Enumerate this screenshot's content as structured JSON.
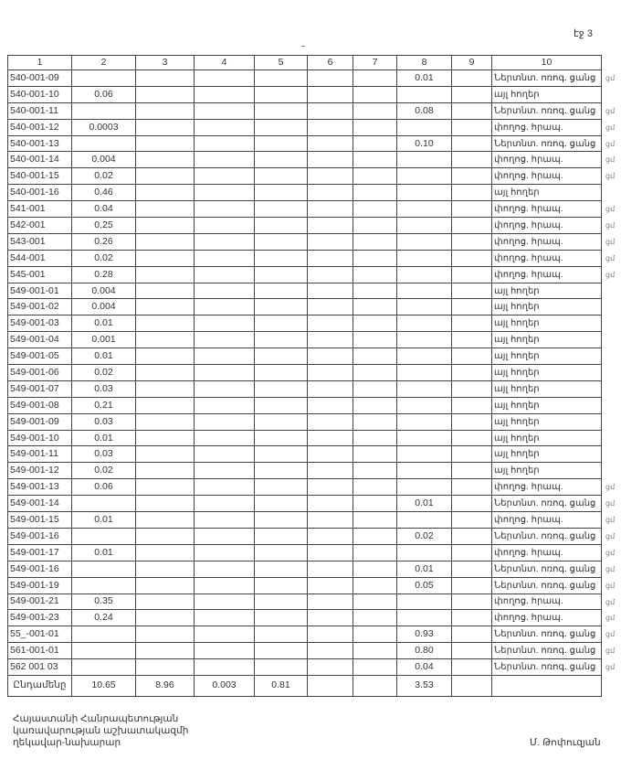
{
  "page_label": "էջ 3",
  "table": {
    "headers": [
      "1",
      "2",
      "3",
      "4",
      "5",
      "6",
      "7",
      "8",
      "9",
      "10"
    ],
    "rows": [
      {
        "code": "540-001-09",
        "c2": "",
        "c8": "0.01",
        "c10": "Ներտնտ. ոռոգ. ցանց",
        "mark": "ցմ"
      },
      {
        "code": "540-001-10",
        "c2": "0.06",
        "c8": "",
        "c10": "այլ հողեր",
        "mark": ""
      },
      {
        "code": "540-001-11",
        "c2": "",
        "c8": "0.08",
        "c10": "Ներտնտ. ոռոգ. ցանց",
        "mark": "ցմ"
      },
      {
        "code": "540-001-12",
        "c2": "0.0003",
        "c8": "",
        "c10": "փողոց. հրապ.",
        "mark": "ցմ"
      },
      {
        "code": "540-001-13",
        "c2": "",
        "c8": "0.10",
        "c10": "Ներտնտ. ոռոգ. ցանց",
        "mark": "ցմ"
      },
      {
        "code": "540-001-14",
        "c2": "0.004",
        "c8": "",
        "c10": "փողոց. հրապ.",
        "mark": "ցմ"
      },
      {
        "code": "540-001-15",
        "c2": "0.02",
        "c8": "",
        "c10": "փողոց. հրապ.",
        "mark": "ցմ"
      },
      {
        "code": "540-001-16",
        "c2": "0.46",
        "c8": "",
        "c10": "այլ հողեր",
        "mark": ""
      },
      {
        "code": "541-001",
        "c2": "0.04",
        "c8": "",
        "c10": "փողոց. հրապ.",
        "mark": "ցմ"
      },
      {
        "code": "542-001",
        "c2": "0.25",
        "c8": "",
        "c10": "փողոց. հրապ.",
        "mark": "ցմ"
      },
      {
        "code": "543-001",
        "c2": "0.26",
        "c8": "",
        "c10": "փողոց. հրապ.",
        "mark": "ցմ"
      },
      {
        "code": "544-001",
        "c2": "0.02",
        "c8": "",
        "c10": "փողոց. հրապ.",
        "mark": "ցմ"
      },
      {
        "code": "545-001",
        "c2": "0.28",
        "c8": "",
        "c10": "փողոց. հրապ.",
        "mark": "ցմ"
      },
      {
        "code": "549-001-01",
        "c2": "0.004",
        "c8": "",
        "c10": "այլ հողեր",
        "mark": ""
      },
      {
        "code": "549-001-02",
        "c2": "0.004",
        "c8": "",
        "c10": "այլ հողեր",
        "mark": ""
      },
      {
        "code": "549-001-03",
        "c2": "0.01",
        "c8": "",
        "c10": "այլ հողեր",
        "mark": ""
      },
      {
        "code": "549-001-04",
        "c2": "0.001",
        "c8": "",
        "c10": "այլ հողեր",
        "mark": ""
      },
      {
        "code": "549-001-05",
        "c2": "0.01",
        "c8": "",
        "c10": "այլ հողեր",
        "mark": ""
      },
      {
        "code": "549-001-06",
        "c2": "0.02",
        "c8": "",
        "c10": "այլ հողեր",
        "mark": ""
      },
      {
        "code": "549-001-07",
        "c2": "0.03",
        "c8": "",
        "c10": "այլ հողեր",
        "mark": ""
      },
      {
        "code": "549-001-08",
        "c2": "0.21",
        "c8": "",
        "c10": "այլ հողեր",
        "mark": ""
      },
      {
        "code": "549-001-09",
        "c2": "0.03",
        "c8": "",
        "c10": "այլ հողեր",
        "mark": ""
      },
      {
        "code": "549-001-10",
        "c2": "0.01",
        "c8": "",
        "c10": "այլ հողեր",
        "mark": ""
      },
      {
        "code": "549-001-11",
        "c2": "0.03",
        "c8": "",
        "c10": "այլ հողեր",
        "mark": ""
      },
      {
        "code": "549-001-12",
        "c2": "0.02",
        "c8": "",
        "c10": "այլ հողեր",
        "mark": ""
      },
      {
        "code": "549-001-13",
        "c2": "0.06",
        "c8": "",
        "c10": "փողոց. հրապ.",
        "mark": "ցմ"
      },
      {
        "code": "549-001-14",
        "c2": "",
        "c8": "0.01",
        "c10": "Ներտնտ. ոռոգ. ցանց",
        "mark": "ցմ"
      },
      {
        "code": "549-001-15",
        "c2": "0.01",
        "c8": "",
        "c10": "փողոց. հրապ.",
        "mark": "ցմ"
      },
      {
        "code": "549-001-16",
        "c2": "",
        "c8": "0.02",
        "c10": "Ներտնտ. ոռոգ. ցանց",
        "mark": "ցմ"
      },
      {
        "code": "549-001-17",
        "c2": "0.01",
        "c8": "",
        "c10": "փողոց. հրապ.",
        "mark": "ցմ"
      },
      {
        "code": "549-001-16",
        "c2": "",
        "c8": "0.01",
        "c10": "Ներտնտ. ոռոգ. ցանց",
        "mark": "ցմ"
      },
      {
        "code": "549-001-19",
        "c2": "",
        "c8": "0.05",
        "c10": "Ներտնտ. ոռոգ. ցանց",
        "mark": "ցմ"
      },
      {
        "code": "549-001-21",
        "c2": "0.35",
        "c8": "",
        "c10": "փողոց. հրապ.",
        "mark": "ցմ"
      },
      {
        "code": "549-001-23",
        "c2": "0.24",
        "c8": "",
        "c10": "փողոց. հրապ.",
        "mark": "ցմ"
      },
      {
        "code": "55_-001-01",
        "c2": "",
        "c8": "0.93",
        "c10": "Ներտնտ. ոռոգ. ցանց",
        "mark": "ցմ"
      },
      {
        "code": "561-001-01",
        "c2": "",
        "c8": "0.80",
        "c10": "Ներտնտ. ոռոգ. ցանց",
        "mark": "ցմ"
      },
      {
        "code": "562 001 03",
        "c2": "",
        "c8": "0.04",
        "c10": "Ներտնտ. ոռոգ. ցանց",
        "mark": "ցմ"
      }
    ],
    "total": {
      "label": "Ընդամենը",
      "c2": "10.65",
      "c3": "8.96",
      "c4": "0.003",
      "c5": "0.81",
      "c6": "",
      "c7": "",
      "c8": "3.53",
      "c9": "",
      "c10": ""
    }
  },
  "footer": {
    "line1": "Հայաստանի Հանրապետության",
    "line2": "կառավարության աշխատակազմի",
    "line3": "ղեկավար-նախարար",
    "signatory": "Մ. Թոփուզյան"
  }
}
